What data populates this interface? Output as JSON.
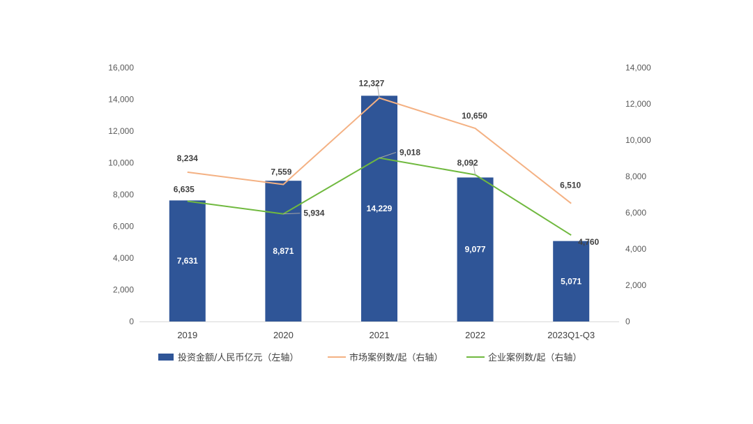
{
  "chart_data": {
    "type": "bar",
    "categories": [
      "2019",
      "2020",
      "2021",
      "2022",
      "2023Q1-Q3"
    ],
    "left_axis": {
      "min": 0,
      "max": 16000,
      "step": 2000,
      "tick_labels": [
        "0",
        "2,000",
        "4,000",
        "6,000",
        "8,000",
        "10,000",
        "12,000",
        "14,000",
        "16,000"
      ]
    },
    "right_axis": {
      "min": 0,
      "max": 14000,
      "step": 2000,
      "tick_labels": [
        "0",
        "2,000",
        "4,000",
        "6,000",
        "8,000",
        "10,000",
        "12,000",
        "14,000"
      ]
    },
    "series": [
      {
        "name": "投资金额/人民币亿元（左轴）",
        "kind": "bar",
        "axis": "left",
        "color": "#2F5597",
        "values": [
          7631,
          8871,
          14229,
          9077,
          5071
        ],
        "labels": [
          "7,631",
          "8,871",
          "14,229",
          "9,077",
          "5,071"
        ]
      },
      {
        "name": "市场案例数/起（右轴）",
        "kind": "line",
        "axis": "right",
        "color": "#F4B183",
        "values": [
          8234,
          7559,
          12327,
          10650,
          6510
        ],
        "labels": [
          "8,234",
          "7,559",
          "12,327",
          "10,650",
          "6,510"
        ]
      },
      {
        "name": "企业案例数/起（右轴）",
        "kind": "line",
        "axis": "right",
        "color": "#70B93F",
        "values": [
          6635,
          5934,
          9018,
          8092,
          4760
        ],
        "labels": [
          "6,635",
          "5,934",
          "9,018",
          "8,092",
          "4,760"
        ]
      }
    ],
    "legend_position": "bottom",
    "grid": false
  }
}
